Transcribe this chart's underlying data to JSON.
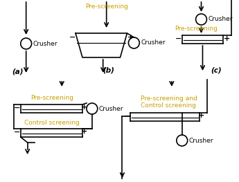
{
  "bg_color": "#ffffff",
  "text_color": "#000000",
  "label_color": "#c8a000",
  "line_color": "#000000",
  "label_fontsize": 6.5,
  "sublabel_fontsize": 7.5,
  "figsize": [
    3.45,
    2.63
  ],
  "dpi": 100,
  "diagrams": {
    "a": {
      "label": "(a)",
      "crusher_label": "Crusher"
    },
    "b": {
      "label": "(b)",
      "prescreening_label": "Pre-screening",
      "crusher_label": "Crusher"
    },
    "c": {
      "label": "(c)",
      "crusher_label": "Crusher",
      "prescreening_label": "Pre-screening"
    },
    "d": {
      "prescreening_label": "Pre-screening",
      "crusher_label": "Crusher",
      "control_label": "Control screening"
    },
    "e": {
      "prescreening_label": "Pre-screening and\nControl screening",
      "crusher_label": "Crusher"
    }
  }
}
